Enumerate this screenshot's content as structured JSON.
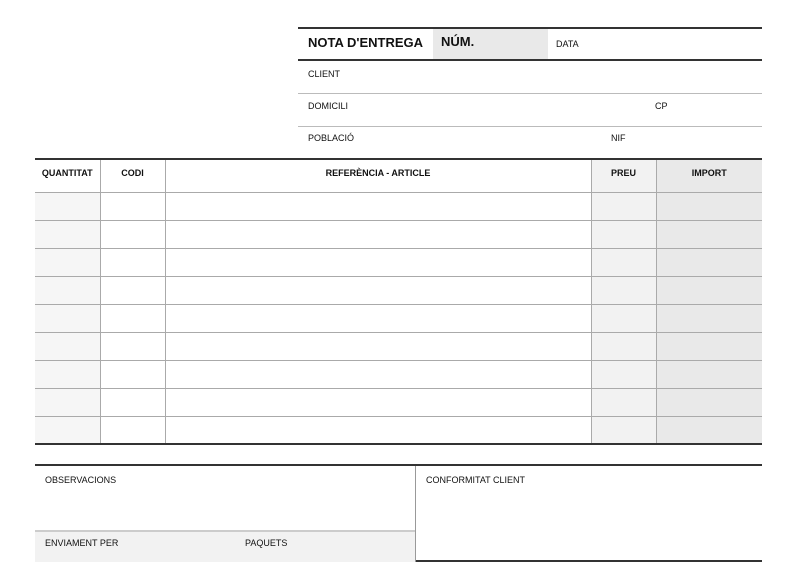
{
  "header": {
    "title": "NOTA D'ENTREGA",
    "number_label": "NÚM.",
    "date_label": "DATA",
    "client_label": "CLIENT",
    "address_label": "DOMICILI",
    "postcode_label": "CP",
    "town_label": "POBLACIÓ",
    "tax_id_label": "NIF"
  },
  "table": {
    "columns": [
      "QUANTITAT",
      "CODI",
      "REFERÈNCIA - ARTICLE",
      "PREU",
      "IMPORT"
    ],
    "rows": [
      [
        "",
        "",
        "",
        "",
        ""
      ],
      [
        "",
        "",
        "",
        "",
        ""
      ],
      [
        "",
        "",
        "",
        "",
        ""
      ],
      [
        "",
        "",
        "",
        "",
        ""
      ],
      [
        "",
        "",
        "",
        "",
        ""
      ],
      [
        "",
        "",
        "",
        "",
        ""
      ],
      [
        "",
        "",
        "",
        "",
        ""
      ],
      [
        "",
        "",
        "",
        "",
        ""
      ],
      [
        "",
        "",
        "",
        "",
        ""
      ]
    ]
  },
  "footer": {
    "observations_label": "OBSERVACIONS",
    "shipping_label": "ENVIAMENT PER",
    "packages_label": "PAQUETS",
    "client_approval_label": "CONFORMITAT CLIENT"
  }
}
